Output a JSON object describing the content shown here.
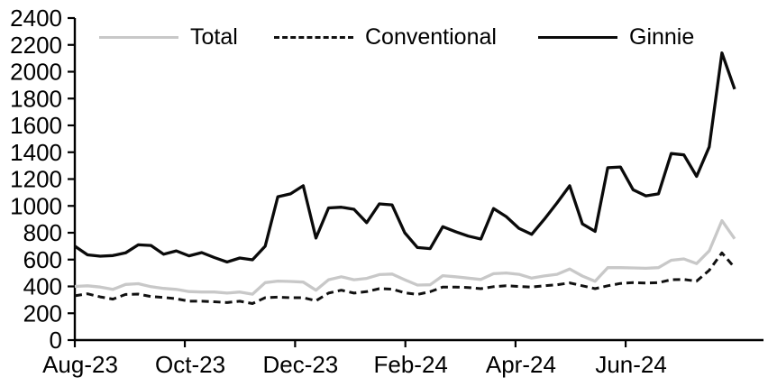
{
  "chart_data": {
    "type": "line",
    "title": "",
    "xlabel": "",
    "ylabel": "",
    "ylim": [
      0,
      2400
    ],
    "y_ticks": [
      0,
      200,
      400,
      600,
      800,
      1000,
      1200,
      1400,
      1600,
      1800,
      2000,
      2200,
      2400
    ],
    "x_tick_labels": [
      "Aug-23",
      "Oct-23",
      "Dec-23",
      "Feb-24",
      "Apr-24",
      "Jun-24"
    ],
    "x_tick_positions_weeks": [
      0,
      8.67,
      17.36,
      26.05,
      34.73,
      43.41
    ],
    "x_unit": "weekly observations from Aug-23 to Aug-24",
    "n_points": 53,
    "grid": false,
    "legend_position": "top",
    "axis_color": "#000000",
    "series": [
      {
        "name": "Total",
        "color": "#c8c8c8",
        "style": "solid",
        "values": [
          400,
          405,
          395,
          378,
          415,
          420,
          398,
          385,
          378,
          362,
          358,
          358,
          350,
          358,
          342,
          428,
          440,
          437,
          432,
          372,
          450,
          472,
          450,
          460,
          488,
          492,
          450,
          410,
          412,
          480,
          472,
          462,
          452,
          495,
          500,
          490,
          462,
          478,
          490,
          530,
          477,
          438,
          540,
          540,
          538,
          535,
          540,
          595,
          605,
          570,
          665,
          890,
          755
        ]
      },
      {
        "name": "Conventional",
        "color": "#111111",
        "style": "dashed",
        "values": [
          330,
          345,
          322,
          305,
          340,
          343,
          325,
          318,
          308,
          290,
          290,
          286,
          280,
          290,
          272,
          316,
          320,
          316,
          316,
          293,
          350,
          372,
          350,
          361,
          383,
          380,
          352,
          340,
          360,
          395,
          395,
          392,
          383,
          398,
          405,
          400,
          395,
          405,
          412,
          426,
          405,
          383,
          405,
          422,
          428,
          425,
          428,
          450,
          452,
          440,
          520,
          650,
          540
        ]
      },
      {
        "name": "Ginnie",
        "color": "#0a0a0a",
        "style": "solid",
        "values": [
          700,
          635,
          625,
          630,
          650,
          710,
          705,
          640,
          665,
          628,
          652,
          615,
          582,
          612,
          598,
          700,
          1068,
          1090,
          1150,
          760,
          985,
          990,
          975,
          875,
          1015,
          1008,
          800,
          690,
          682,
          845,
          808,
          775,
          753,
          980,
          920,
          833,
          788,
          900,
          1022,
          1150,
          866,
          810,
          1285,
          1290,
          1120,
          1075,
          1090,
          1390,
          1380,
          1220,
          1440,
          2140,
          1870
        ]
      }
    ]
  }
}
